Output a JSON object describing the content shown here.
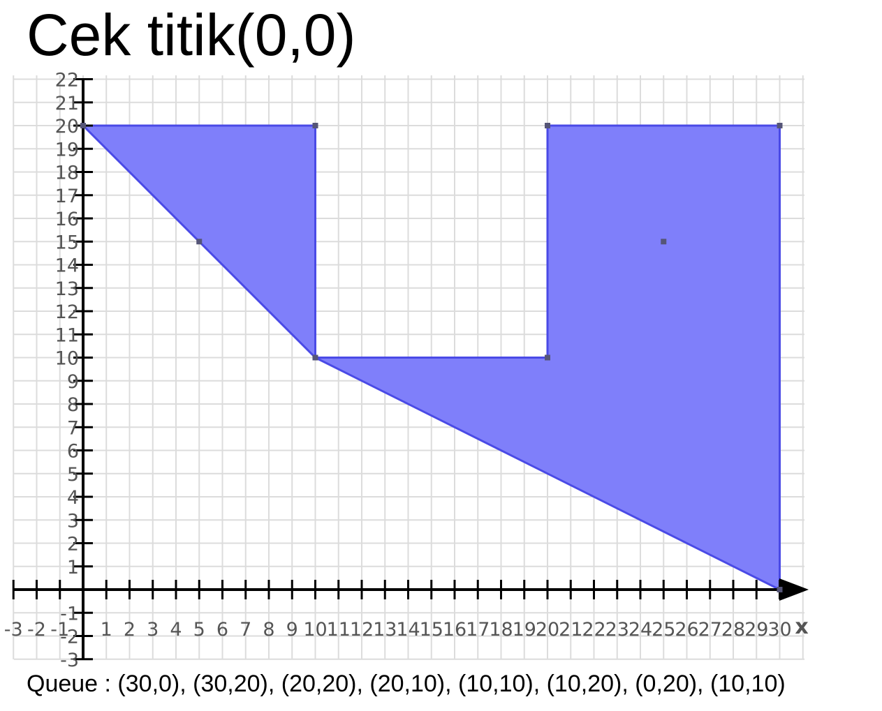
{
  "title": "Cek titik(0,0)",
  "caption": "Queue : (30,0), (30,20), (20,20), (20,10), (10,10), (10,20), (0,20), (10,10)",
  "colors": {
    "fill": "#7f7ffa",
    "edge": "#4a4ae6",
    "grid": "#dcdcdc",
    "axis": "#000000",
    "tick_label": "#555555",
    "vertex_marker": "#555577"
  },
  "chart_data": {
    "type": "area",
    "title": "Cek titik(0,0)",
    "xlabel": "x",
    "ylabel": "",
    "xlim": [
      -3,
      31
    ],
    "ylim": [
      -3,
      22
    ],
    "grid": true,
    "xticks": [
      -3,
      -2,
      -1,
      1,
      2,
      3,
      4,
      5,
      6,
      7,
      8,
      9,
      10,
      11,
      12,
      13,
      14,
      15,
      16,
      17,
      18,
      19,
      20,
      21,
      22,
      23,
      24,
      25,
      26,
      27,
      28,
      29,
      30
    ],
    "yticks": [
      -3,
      -2,
      -1,
      1,
      2,
      3,
      4,
      5,
      6,
      7,
      8,
      9,
      10,
      11,
      12,
      13,
      14,
      15,
      16,
      17,
      18,
      19,
      20,
      21,
      22
    ],
    "polygon": [
      [
        0,
        20
      ],
      [
        10,
        20
      ],
      [
        10,
        10
      ],
      [
        20,
        10
      ],
      [
        20,
        20
      ],
      [
        30,
        20
      ],
      [
        30,
        0
      ],
      [
        10,
        10
      ]
    ],
    "markers": [
      [
        0,
        20
      ],
      [
        10,
        20
      ],
      [
        20,
        20
      ],
      [
        30,
        20
      ],
      [
        5,
        15
      ],
      [
        25,
        15
      ],
      [
        10,
        10
      ],
      [
        20,
        10
      ],
      [
        30,
        0
      ]
    ]
  }
}
